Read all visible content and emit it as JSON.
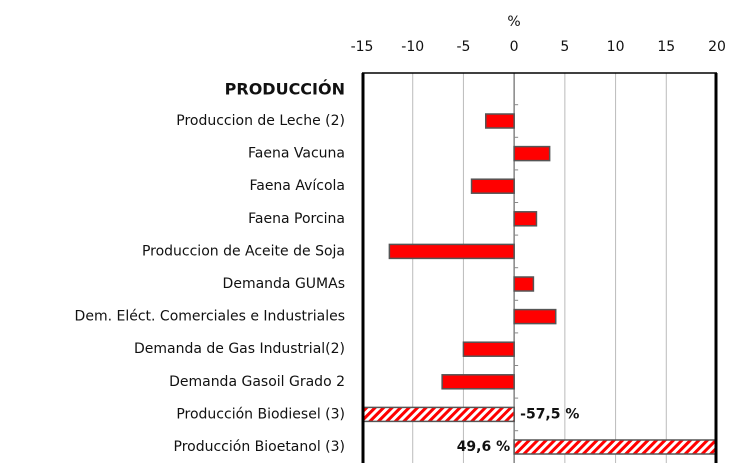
{
  "chart_data": {
    "type": "bar",
    "orientation": "horizontal",
    "xlabel": "%",
    "group_label": "PRODUCCIÓN",
    "categories": [
      "Produccion de Leche (2)",
      "Faena Vacuna ",
      "Faena Avícola ",
      "Faena Porcina ",
      "Produccion de Aceite de Soja",
      "Demanda  GUMAs",
      "Dem. Eléct. Comerciales e Industriales",
      "Demanda de Gas Industrial(2)",
      "Demanda Gasoil Grado 2",
      "Producción Biodiesel (3)",
      "Producción Bioetanol (3)"
    ],
    "values": [
      -2.8,
      3.5,
      -4.2,
      2.2,
      -12.3,
      1.9,
      4.1,
      -5.0,
      -7.1,
      -57.5,
      49.6
    ],
    "value_labels": [
      null,
      null,
      null,
      null,
      null,
      null,
      null,
      null,
      null,
      "-57,5 %",
      "49,6 %"
    ],
    "color": "#ff0000",
    "xlim": [
      -15,
      20
    ],
    "xticks": [
      -15,
      -10,
      -5,
      0,
      5,
      10,
      15,
      20
    ],
    "grid": true
  }
}
